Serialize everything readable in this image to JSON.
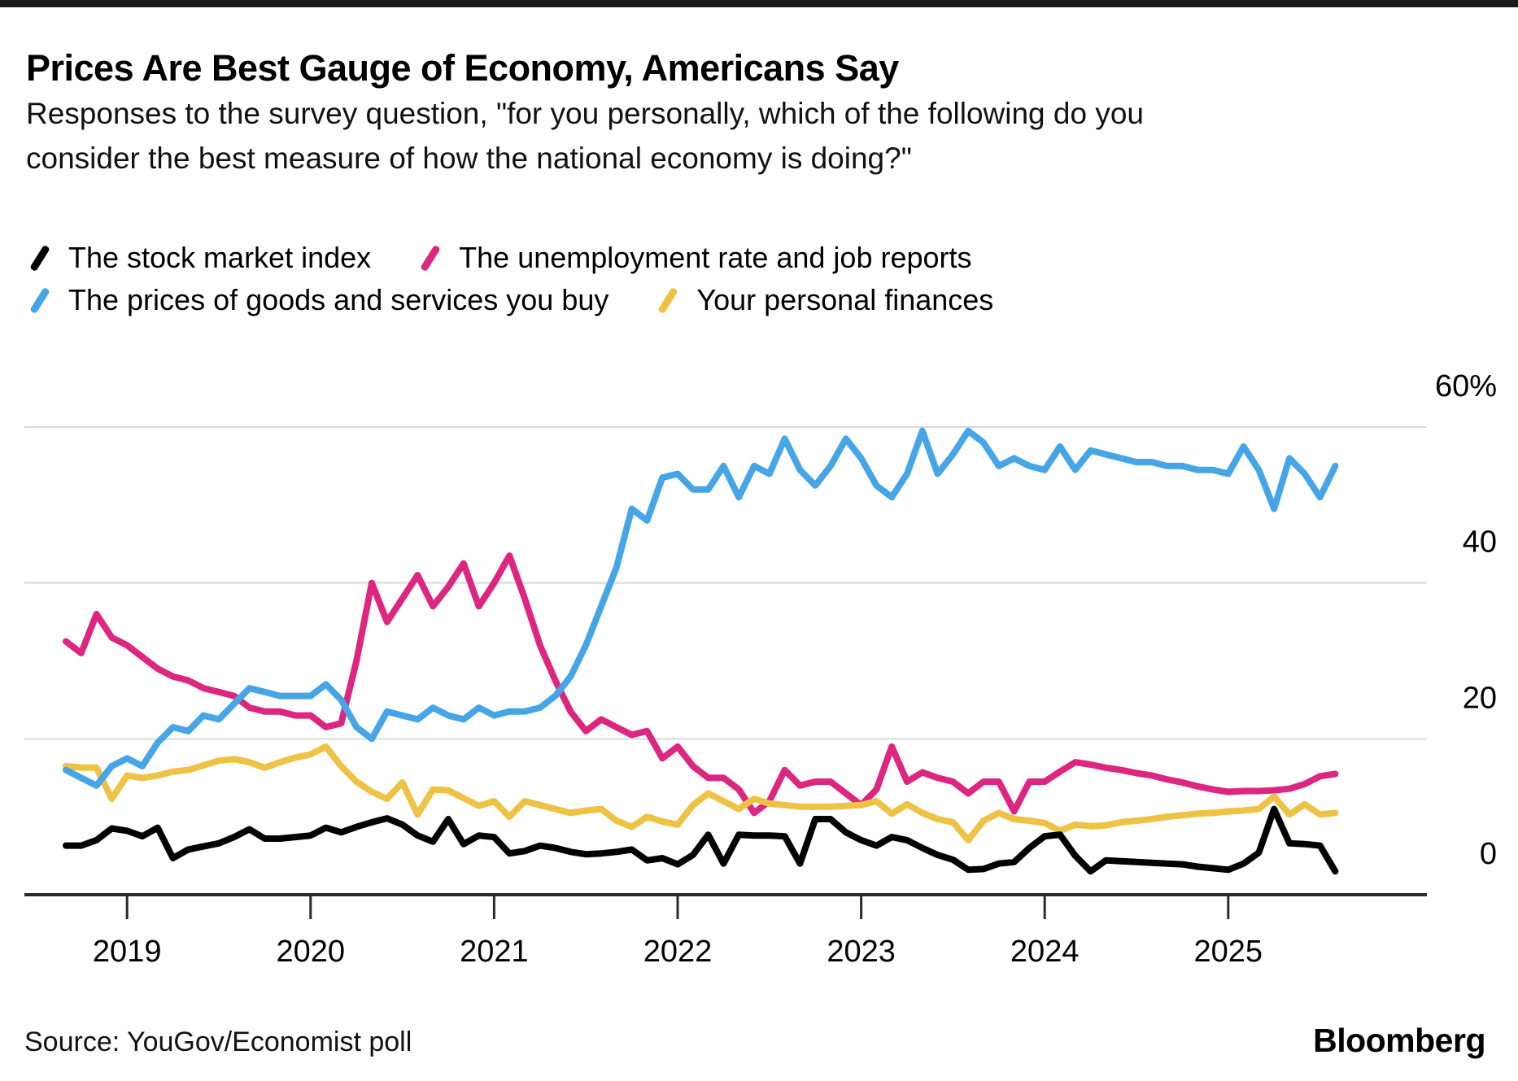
{
  "header": {
    "title": "Prices Are Best Gauge of Economy, Americans Say",
    "subtitle": "Responses to the survey question, \"for you personally, which of the following do you consider the best measure of how the national economy is doing?\""
  },
  "legend": {
    "items": [
      {
        "label": "The stock market index",
        "color": "#000000"
      },
      {
        "label": "The unemployment rate and job reports",
        "color": "#DC2680"
      },
      {
        "label": "The prices of goods and services you buy",
        "color": "#46A5E6"
      },
      {
        "label": "Your personal finances",
        "color": "#EEC345"
      }
    ]
  },
  "source": "Source: YouGov/Economist poll",
  "brand": "Bloomberg",
  "chart_data": {
    "type": "line",
    "title": "Prices Are Best Gauge of Economy, Americans Say",
    "x_unit": "month",
    "x_start": "2018-09",
    "x_end": "2025-08",
    "x_tick_labels": [
      "2019",
      "2020",
      "2021",
      "2022",
      "2023",
      "2024",
      "2025"
    ],
    "x_tick_month_index": [
      4,
      16,
      28,
      40,
      52,
      64,
      76
    ],
    "ylim": [
      0,
      60
    ],
    "y_ticks": [
      0,
      20,
      40,
      60
    ],
    "y_tick_labels": [
      "0",
      "20",
      "40",
      "60%"
    ],
    "grid": "horizontal",
    "legend_position": "top",
    "series": [
      {
        "name": "The stock market index",
        "color": "#000000",
        "values": [
          6.3,
          6.3,
          7,
          8.5,
          8.2,
          7.5,
          8.6,
          4.7,
          5.8,
          6.2,
          6.6,
          7.4,
          8.4,
          7.2,
          7.2,
          7.4,
          7.6,
          8.6,
          8,
          8.7,
          9.3,
          9.8,
          9,
          7.6,
          6.8,
          9.7,
          6.5,
          7.6,
          7.4,
          5.3,
          5.6,
          6.3,
          6,
          5.5,
          5.2,
          5.3,
          5.5,
          5.8,
          4.4,
          4.7,
          3.9,
          5.1,
          7.7,
          4,
          7.7,
          7.6,
          7.6,
          7.5,
          4,
          9.7,
          9.7,
          8,
          7,
          6.3,
          7.4,
          7,
          6,
          5.1,
          4.5,
          3.2,
          3.3,
          4,
          4.2,
          6,
          7.5,
          7.7,
          5,
          3,
          4.4,
          4.3,
          4.2,
          4.1,
          4,
          3.9,
          3.6,
          3.4,
          3.2,
          4,
          5.4,
          11,
          6.6,
          6.5,
          6.3,
          3
        ]
      },
      {
        "name": "The unemployment rate and job reports",
        "color": "#DC2680",
        "values": [
          32.5,
          31,
          36,
          33,
          32,
          30.5,
          29,
          28,
          27.5,
          26.5,
          26,
          25.5,
          24,
          23.5,
          23.5,
          23,
          23,
          21.5,
          22,
          30,
          40,
          35,
          38,
          41,
          37,
          39.5,
          42.5,
          37,
          40,
          43.5,
          38,
          32,
          27.5,
          23.5,
          21,
          22.5,
          21.5,
          20.5,
          21,
          17.5,
          19,
          16.5,
          15,
          15,
          13.5,
          10.5,
          12,
          16,
          14,
          14.5,
          14.5,
          13,
          11.5,
          13.5,
          19,
          14.5,
          15.7,
          15,
          14.5,
          13,
          14.5,
          14.5,
          10.7,
          14.5,
          14.5,
          15.8,
          17,
          16.7,
          16.3,
          16,
          15.6,
          15.3,
          14.8,
          14.4,
          13.9,
          13.5,
          13.2,
          13.3,
          13.3,
          13.4,
          13.6,
          14.2,
          15.2,
          15.5
        ]
      },
      {
        "name": "The prices of goods and services you buy",
        "color": "#46A5E6",
        "values": [
          16,
          15,
          14,
          16.5,
          17.5,
          16.5,
          19.5,
          21.5,
          21,
          23,
          22.5,
          24.5,
          26.5,
          26,
          25.5,
          25.5,
          25.5,
          27,
          25,
          21.5,
          20,
          23.5,
          23,
          22.5,
          24,
          23,
          22.5,
          24,
          23,
          23.5,
          23.5,
          24,
          25.5,
          28,
          32,
          37,
          42,
          49.5,
          48,
          53.5,
          54,
          52,
          52,
          55,
          51,
          55,
          54,
          58.5,
          54.5,
          52.5,
          55,
          58.5,
          56,
          52.5,
          51,
          54,
          59.5,
          54,
          56.5,
          59.5,
          58,
          55,
          56,
          55,
          54.5,
          57.5,
          54.5,
          57,
          56.5,
          56,
          55.5,
          55.5,
          55,
          55,
          54.5,
          54.5,
          54,
          57.5,
          54.5,
          49.5,
          56,
          54,
          51,
          55
        ]
      },
      {
        "name": "Your personal finances",
        "color": "#EEC345",
        "values": [
          16.5,
          16.3,
          16.3,
          12.3,
          15.3,
          15,
          15.3,
          15.8,
          16,
          16.6,
          17.2,
          17.4,
          17,
          16.3,
          17,
          17.6,
          18,
          19,
          16.5,
          14.5,
          13.2,
          12.3,
          14.4,
          10.3,
          13.5,
          13.4,
          12.4,
          11.4,
          12,
          10,
          12,
          11.5,
          11,
          10.5,
          10.8,
          11,
          9.5,
          8.7,
          10,
          9.4,
          9,
          11.5,
          13,
          12,
          11,
          12.3,
          11.7,
          11.5,
          11.3,
          11.3,
          11.3,
          11.4,
          11.5,
          12,
          10.4,
          11.6,
          10.5,
          9.7,
          9.3,
          7,
          9.5,
          10.5,
          9.7,
          9.5,
          9.2,
          8.2,
          9,
          8.8,
          8.9,
          9.3,
          9.5,
          9.7,
          10,
          10.2,
          10.4,
          10.5,
          10.7,
          10.8,
          11,
          12.6,
          10.3,
          11.6,
          10.3,
          10.5
        ]
      }
    ]
  }
}
